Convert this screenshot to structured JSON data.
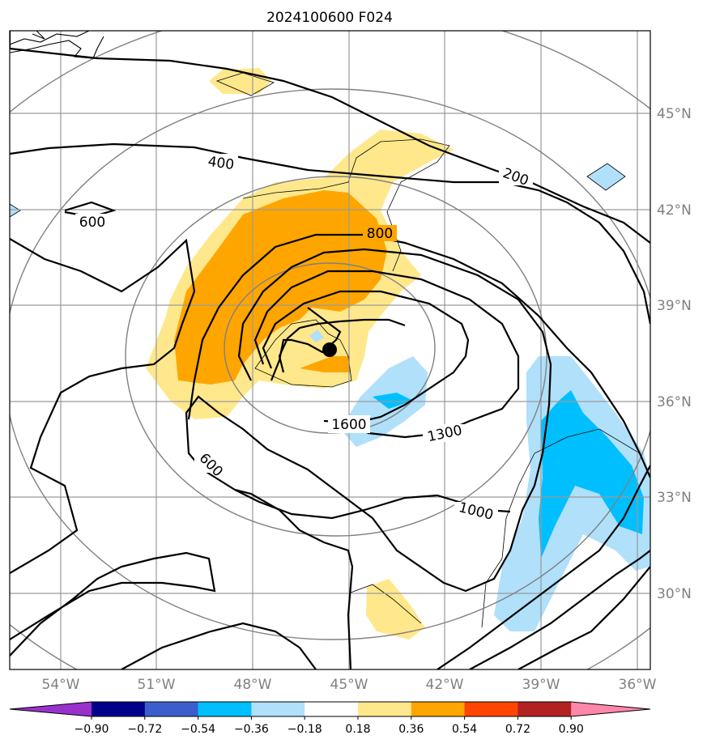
{
  "title": "2024100600 F024",
  "map": {
    "lon_ticks": [
      "54°W",
      "51°W",
      "48°W",
      "45°W",
      "42°W",
      "39°W",
      "36°W"
    ],
    "lat_ticks": [
      "45°N",
      "42°N",
      "39°N",
      "36°N",
      "33°N",
      "30°N"
    ],
    "contour_labels": [
      "400",
      "200",
      "600",
      "800",
      "1600",
      "1300",
      "1000",
      "600"
    ],
    "center_marker": "storm-center"
  },
  "colorbar": {
    "labels": [
      "−0.90",
      "−0.72",
      "−0.54",
      "−0.36",
      "−0.18",
      "0.18",
      "0.36",
      "0.54",
      "0.72",
      "0.90"
    ],
    "colors": [
      "#9932cc",
      "#00008b",
      "#3a5fcd",
      "#00bfff",
      "#b0e0fa",
      "#ffffff",
      "#ffe88c",
      "#ffa500",
      "#ff4500",
      "#b22222",
      "#ff88aa"
    ]
  }
}
